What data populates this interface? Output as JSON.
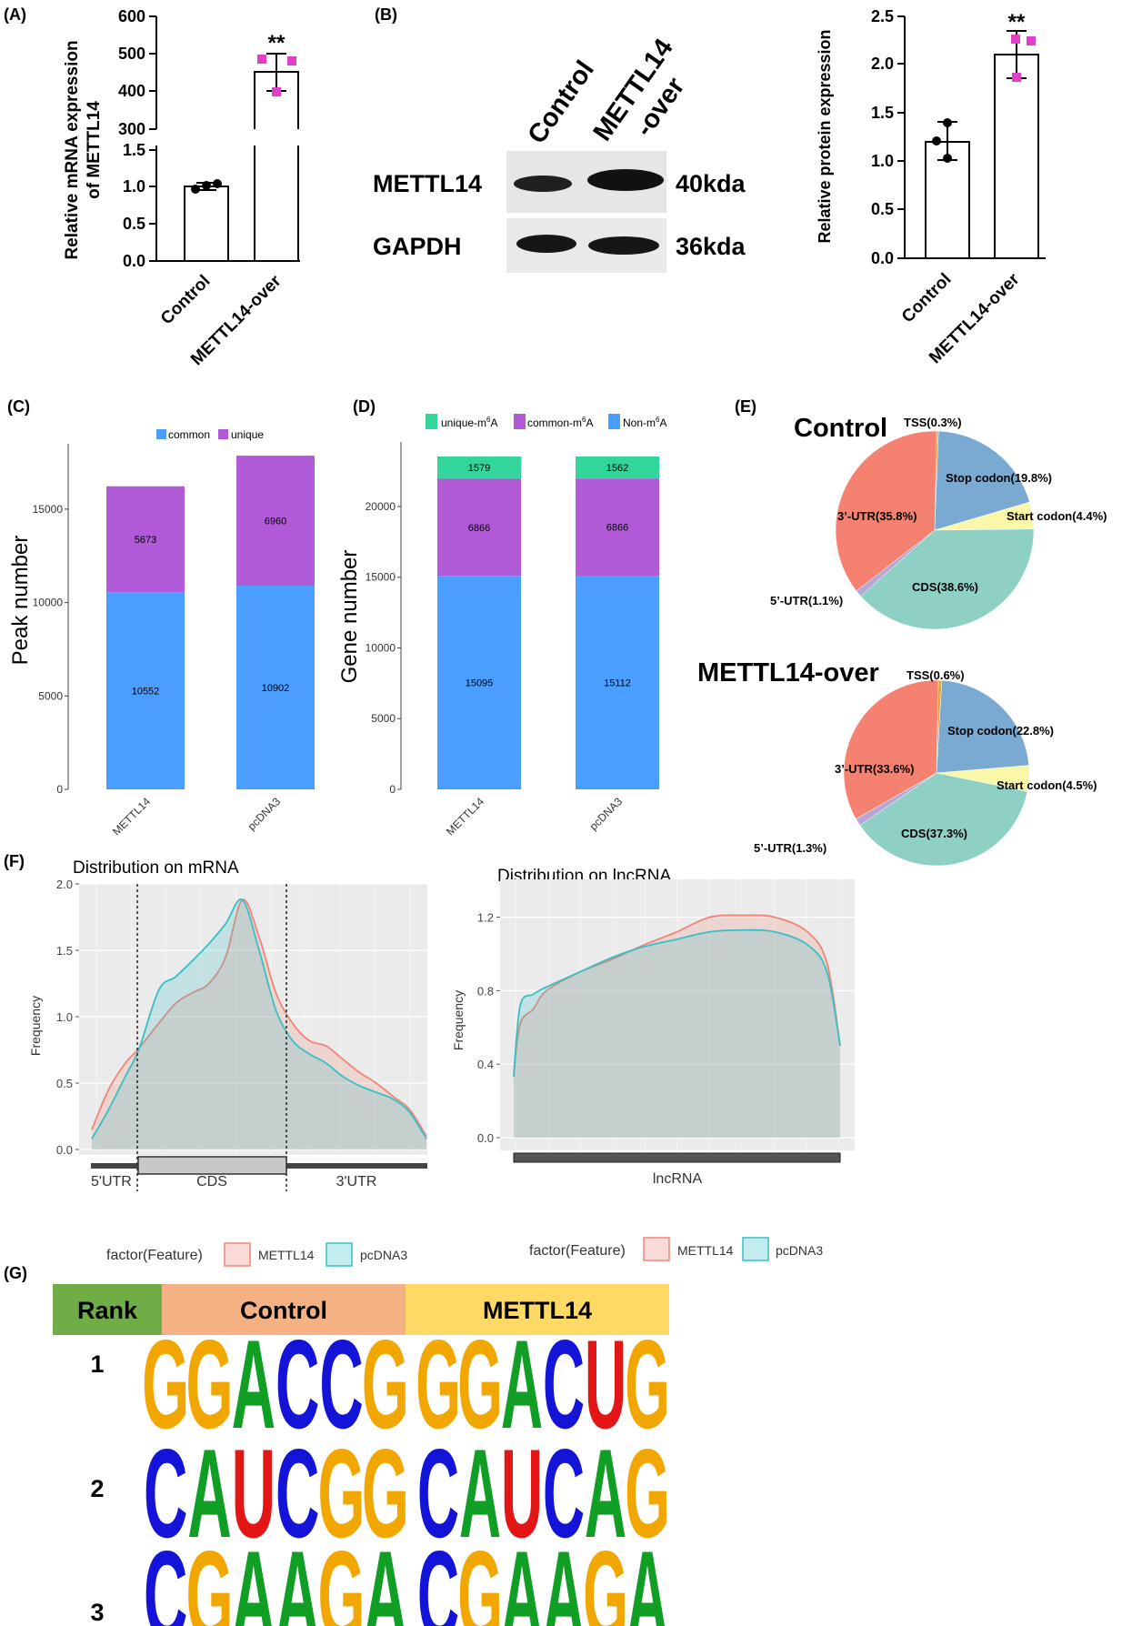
{
  "panel_labels": [
    "(A)",
    "(B)",
    "(C)",
    "(D)",
    "(E)",
    "(F)",
    "(G)"
  ],
  "panel_a": {
    "ylabel_line1": "Relative mRNA expression",
    "ylabel_line2": "of METTL14",
    "upper_ticks": [
      "300",
      "400",
      "500",
      "600"
    ],
    "lower_ticks": [
      "0.0",
      "0.5",
      "1.0",
      "1.5"
    ],
    "categories": [
      "Control",
      "METTL14-over"
    ],
    "significance": "**"
  },
  "panel_b": {
    "col_labels": [
      "Control",
      "METTL14",
      "-over"
    ],
    "row_labels": [
      "METTL14",
      "GAPDH"
    ],
    "sizes": [
      "40kda",
      "36kda"
    ]
  },
  "panel_b2": {
    "ylabel": "Relative protein expression",
    "ticks": [
      "0.0",
      "0.5",
      "1.0",
      "1.5",
      "2.0",
      "2.5"
    ],
    "categories": [
      "Control",
      "METTL14-over"
    ],
    "significance": "**"
  },
  "panel_c": {
    "legend": [
      "common",
      "unique"
    ],
    "ylabel": "Peak number",
    "ticks": [
      "0",
      "5000",
      "10000",
      "15000"
    ],
    "categories": [
      "METTL14",
      "pcDNA3"
    ]
  },
  "panel_d": {
    "legend_main": [
      "unique-m",
      "common-m",
      "Non-m"
    ],
    "legend_sup": "6",
    "legend_tail": "A",
    "ylabel": "Gene number",
    "ticks": [
      "0",
      "5000",
      "10000",
      "15000",
      "20000"
    ],
    "categories": [
      "METTL14",
      "pcDNA3"
    ]
  },
  "panel_e": {
    "titles": [
      "Control",
      "METTL14-over"
    ],
    "control_labels": [
      "TSS(0.3%)",
      "Stop codon(19.8%)",
      "Start codon(4.4%)",
      "CDS(38.6%)",
      "5’-UTR(1.1%)",
      "3’-UTR(35.8%)"
    ],
    "over_labels": [
      "TSS(0.6%)",
      "Stop codon(22.8%)",
      "Start codon(4.5%)",
      "CDS(37.3%)",
      "5’-UTR(1.3%)",
      "3’-UTR(33.6%)"
    ]
  },
  "panel_f": {
    "mrna_title": "Distribution on mRNA",
    "lnc_title": "Distribution on lncRNA",
    "ylabel": "Frequency",
    "mrna_ticks": [
      "0.0",
      "0.5",
      "1.0",
      "1.5",
      "2.0"
    ],
    "lnc_ticks": [
      "0.0",
      "0.4",
      "0.8",
      "1.2"
    ],
    "mrna_regions": [
      "5'UTR",
      "CDS",
      "3'UTR"
    ],
    "lnc_region": "lncRNA",
    "legend_title": "factor(Feature)",
    "legend_items": [
      "METTL14",
      "pcDNA3"
    ]
  },
  "panel_g": {
    "headers": [
      "Rank",
      "Control",
      "METTL14"
    ],
    "ranks": [
      "1",
      "2",
      "3"
    ],
    "motifs": [
      {
        "control": "GGACCG",
        "mettl14": "GGACUG"
      },
      {
        "control": "CAUCGG",
        "mettl14": "CAUCAG"
      },
      {
        "control": "CGAAGA",
        "mettl14": "CGAAGA"
      }
    ]
  },
  "chart_data": [
    {
      "type": "bar",
      "panel": "A",
      "categories": [
        "Control",
        "METTL14-over"
      ],
      "values": [
        1.0,
        450
      ],
      "points": [
        [
          0.95,
          1.02,
          1.05
        ],
        [
          410,
          455,
          480
        ]
      ],
      "error": [
        0.05,
        50
      ],
      "ylabel": "Relative mRNA expression of METTL14",
      "axis_break": true
    },
    {
      "type": "bar",
      "panel": "B",
      "categories": [
        "Control",
        "METTL14-over"
      ],
      "values": [
        1.2,
        2.1
      ],
      "points": [
        [
          1.05,
          1.2,
          1.35
        ],
        [
          1.85,
          2.12,
          2.28
        ]
      ],
      "error": [
        0.2,
        0.25
      ],
      "ylabel": "Relative protein expression",
      "ylim": [
        0,
        2.5
      ]
    },
    {
      "type": "bar",
      "panel": "C",
      "stacked": true,
      "categories": [
        "METTL14",
        "pcDNA3"
      ],
      "series": [
        {
          "name": "common",
          "values": [
            10552,
            10902
          ],
          "color": "#4a9eff"
        },
        {
          "name": "unique",
          "values": [
            5673,
            6960
          ],
          "color": "#b05ad8"
        }
      ],
      "ylabel": "Peak number",
      "ylim": [
        0,
        18500
      ]
    },
    {
      "type": "bar",
      "panel": "D",
      "stacked": true,
      "categories": [
        "METTL14",
        "pcDNA3"
      ],
      "series": [
        {
          "name": "Non-m6A",
          "values": [
            15095,
            15112
          ],
          "color": "#4a9eff"
        },
        {
          "name": "common-m6A",
          "values": [
            6866,
            6866
          ],
          "color": "#b05ad8"
        },
        {
          "name": "unique-m6A",
          "values": [
            1579,
            1562
          ],
          "color": "#33d69a"
        }
      ],
      "ylabel": "Gene number",
      "ylim": [
        0,
        24500
      ]
    },
    {
      "type": "pie",
      "panel": "E",
      "title": "Control",
      "labels": [
        "TSS",
        "Stop codon",
        "Start codon",
        "CDS",
        "5’-UTR",
        "3’-UTR"
      ],
      "values": [
        0.3,
        19.8,
        4.4,
        38.6,
        1.1,
        35.8
      ],
      "colors": [
        "#e8a33a",
        "#7aa9d1",
        "#faf7a8",
        "#8ed1c4",
        "#b8a6d4",
        "#f58270"
      ]
    },
    {
      "type": "pie",
      "panel": "E",
      "title": "METTL14-over",
      "labels": [
        "TSS",
        "Stop codon",
        "Start codon",
        "CDS",
        "5’-UTR",
        "3’-UTR"
      ],
      "values": [
        0.6,
        22.8,
        4.5,
        37.3,
        1.3,
        33.6
      ],
      "colors": [
        "#e8a33a",
        "#7aa9d1",
        "#faf7a8",
        "#8ed1c4",
        "#b8a6d4",
        "#f58270"
      ]
    },
    {
      "type": "area",
      "panel": "F",
      "title": "Distribution on mRNA",
      "ylabel": "Frequency",
      "ylim": [
        0,
        2.0
      ],
      "x": [
        0,
        0.05,
        0.1,
        0.14,
        0.2,
        0.25,
        0.3,
        0.35,
        0.4,
        0.45,
        0.5,
        0.55,
        0.6,
        0.65,
        0.7,
        0.75,
        0.8,
        0.85,
        0.9,
        0.95,
        1.0
      ],
      "series": [
        {
          "name": "METTL14",
          "color": "#f08577",
          "values": [
            0.15,
            0.45,
            0.65,
            0.76,
            0.95,
            1.1,
            1.18,
            1.25,
            1.45,
            1.88,
            1.6,
            1.18,
            0.95,
            0.82,
            0.78,
            0.68,
            0.58,
            0.5,
            0.4,
            0.3,
            0.1
          ]
        },
        {
          "name": "pcDNA3",
          "color": "#36c0c4",
          "values": [
            0.08,
            0.3,
            0.55,
            0.75,
            1.2,
            1.3,
            1.42,
            1.55,
            1.7,
            1.88,
            1.5,
            1.05,
            0.82,
            0.72,
            0.65,
            0.55,
            0.48,
            0.43,
            0.38,
            0.28,
            0.08
          ]
        }
      ]
    },
    {
      "type": "area",
      "panel": "F",
      "title": "Distribution on lncRNA",
      "ylabel": "Frequency",
      "ylim": [
        -0.05,
        1.3
      ],
      "x": [
        0,
        0.02,
        0.06,
        0.1,
        0.2,
        0.3,
        0.4,
        0.5,
        0.6,
        0.7,
        0.8,
        0.9,
        0.96,
        1.0
      ],
      "series": [
        {
          "name": "METTL14",
          "color": "#f08577",
          "values": [
            0.35,
            0.62,
            0.7,
            0.8,
            0.9,
            0.97,
            1.05,
            1.12,
            1.2,
            1.21,
            1.2,
            1.12,
            0.95,
            0.5
          ]
        },
        {
          "name": "pcDNA3",
          "color": "#36c0c4",
          "values": [
            0.33,
            0.72,
            0.78,
            0.82,
            0.9,
            0.98,
            1.04,
            1.08,
            1.12,
            1.13,
            1.12,
            1.05,
            0.9,
            0.5
          ]
        }
      ]
    }
  ]
}
